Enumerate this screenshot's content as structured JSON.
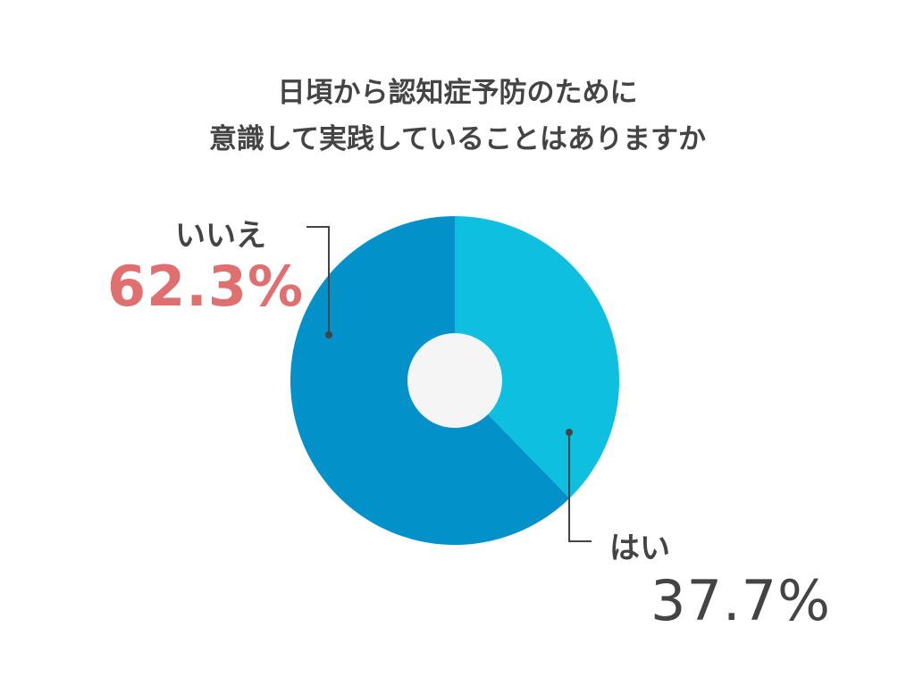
{
  "title": {
    "line1": "日頃から認知症予防のために",
    "line2": "意識して実践していることはありますか"
  },
  "chart_data": {
    "type": "pie",
    "variant": "donut",
    "categories": [
      "はい",
      "いいえ"
    ],
    "values": [
      37.7,
      62.3
    ],
    "value_labels": [
      "37.7%",
      "62.3%"
    ],
    "colors": [
      "#0ebfe0",
      "#0391c9"
    ],
    "center_color": "#f5f5f5",
    "legend": "none"
  },
  "labels": {
    "no": {
      "text": "いいえ",
      "value": "62.3%",
      "value_color": "#e07070"
    },
    "yes": {
      "text": "はい",
      "value": "37.7%"
    }
  }
}
